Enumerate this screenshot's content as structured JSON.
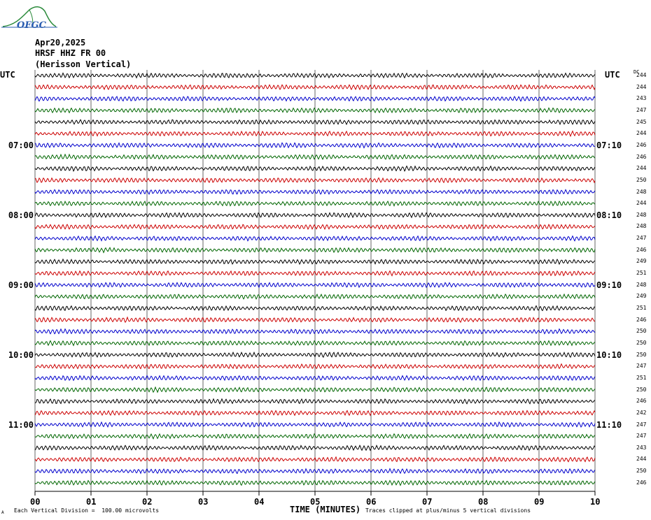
{
  "logo": {
    "text": "OFGC"
  },
  "header": {
    "date": "Apr20,2025",
    "station": "HRSF HHZ FR 00",
    "name": "(Herisson Vertical)"
  },
  "utc_label_left": "UTC",
  "utc_label_right": "UTC",
  "dc_header": "DC",
  "xlabel": "TIME (MINUTES)",
  "footer": {
    "scale": "Each Vertical Division =  100.00 microvolts",
    "clip": "Traces clipped at plus/minus 5 vertical divisions",
    "mark": "A"
  },
  "colors": {
    "trace_cycle": [
      "#000000",
      "#cc0000",
      "#0000cc",
      "#006600"
    ],
    "grid": "#000000",
    "logo": "#2a8a3a"
  },
  "chart_data": {
    "type": "line",
    "title": "HRSF HHZ FR 00 (Herisson Vertical)",
    "xlabel": "TIME (MINUTES)",
    "xlim": [
      0,
      10
    ],
    "x_ticks": [
      "00",
      "01",
      "02",
      "03",
      "04",
      "05",
      "06",
      "07",
      "08",
      "09",
      "10"
    ],
    "left_hour_labels": [
      {
        "row": 6,
        "label": "07:00"
      },
      {
        "row": 12,
        "label": "08:00"
      },
      {
        "row": 18,
        "label": "09:00"
      },
      {
        "row": 24,
        "label": "10:00"
      },
      {
        "row": 30,
        "label": "11:00"
      }
    ],
    "right_hour_labels": [
      {
        "row": 6,
        "label": "07:10"
      },
      {
        "row": 12,
        "label": "08:10"
      },
      {
        "row": 18,
        "label": "09:10"
      },
      {
        "row": 24,
        "label": "10:10"
      },
      {
        "row": 30,
        "label": "11:10"
      }
    ],
    "trace_count": 36,
    "dc_offsets": [
      244,
      244,
      243,
      247,
      245,
      244,
      246,
      246,
      244,
      250,
      248,
      244,
      248,
      248,
      247,
      246,
      249,
      251,
      248,
      249,
      251,
      246,
      250,
      250,
      250,
      247,
      251,
      250,
      246,
      242,
      247,
      247,
      243,
      244,
      250,
      246
    ],
    "grid": true
  }
}
